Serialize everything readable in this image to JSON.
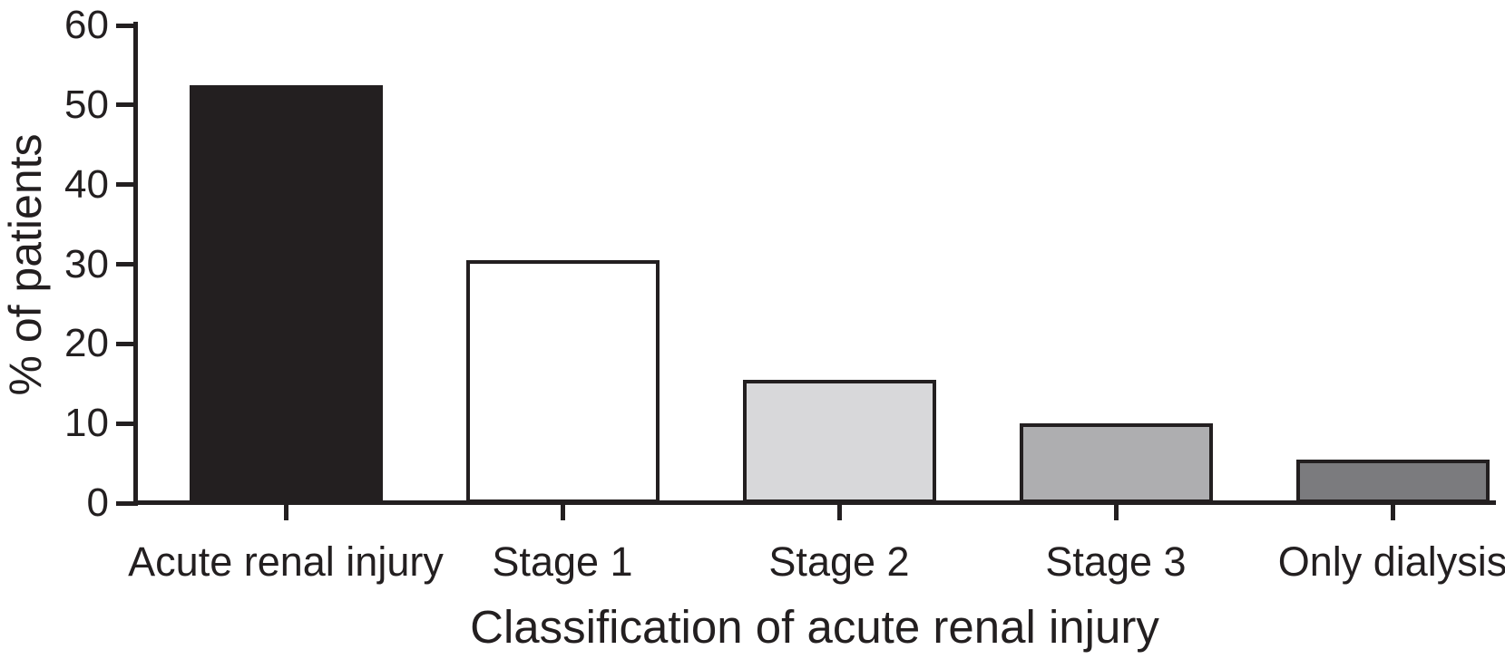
{
  "chart_data": {
    "type": "bar",
    "title": "",
    "xlabel": "Classification of acute renal injury",
    "ylabel": "% of patients",
    "categories": [
      "Acute renal injury",
      "Stage 1",
      "Stage 2",
      "Stage 3",
      "Only dialysis"
    ],
    "values": [
      52.5,
      30.5,
      15.5,
      10,
      5.5
    ],
    "bar_colors": [
      "#231f20",
      "#ffffff",
      "#d8d8da",
      "#aeaeb0",
      "#7b7b7e"
    ],
    "bar_border_color": "#231f20",
    "axis_color": "#231f20",
    "text_color": "#231f20",
    "yticks": [
      0,
      10,
      20,
      30,
      40,
      50,
      60
    ],
    "ylim": [
      0,
      60
    ],
    "grid": false,
    "legend": "none",
    "background": "#ffffff"
  }
}
